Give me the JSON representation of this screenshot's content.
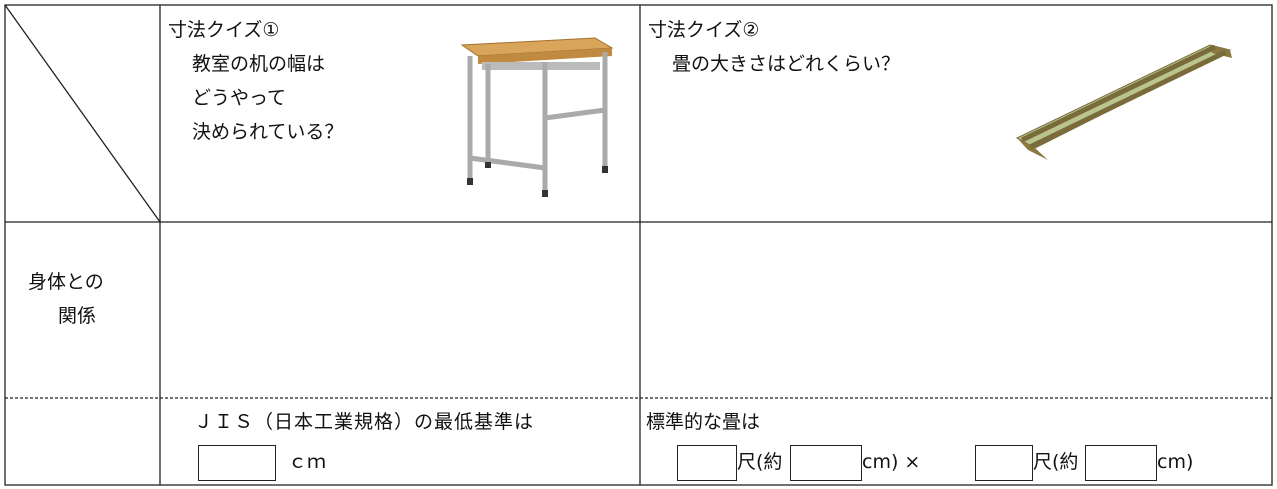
{
  "table": {
    "header": {
      "quiz1": {
        "title": "寸法クイズ①",
        "question": [
          "教室の机の幅は",
          "どうやって",
          "決められている？"
        ]
      },
      "quiz2": {
        "title": "寸法クイズ②",
        "question": "畳の大きさはどれくらい？"
      }
    },
    "rows": [
      {
        "label": [
          "身体との",
          "関係"
        ]
      },
      {
        "quiz1": {
          "text": "ＪＩＳ（日本工業規格）の最低基準は",
          "unit": "ｃｍ"
        },
        "quiz2": {
          "text": "標準的な畳は",
          "parts": [
            "尺(約",
            "cm) ×",
            "尺(約",
            "cm)"
          ]
        }
      }
    ]
  }
}
